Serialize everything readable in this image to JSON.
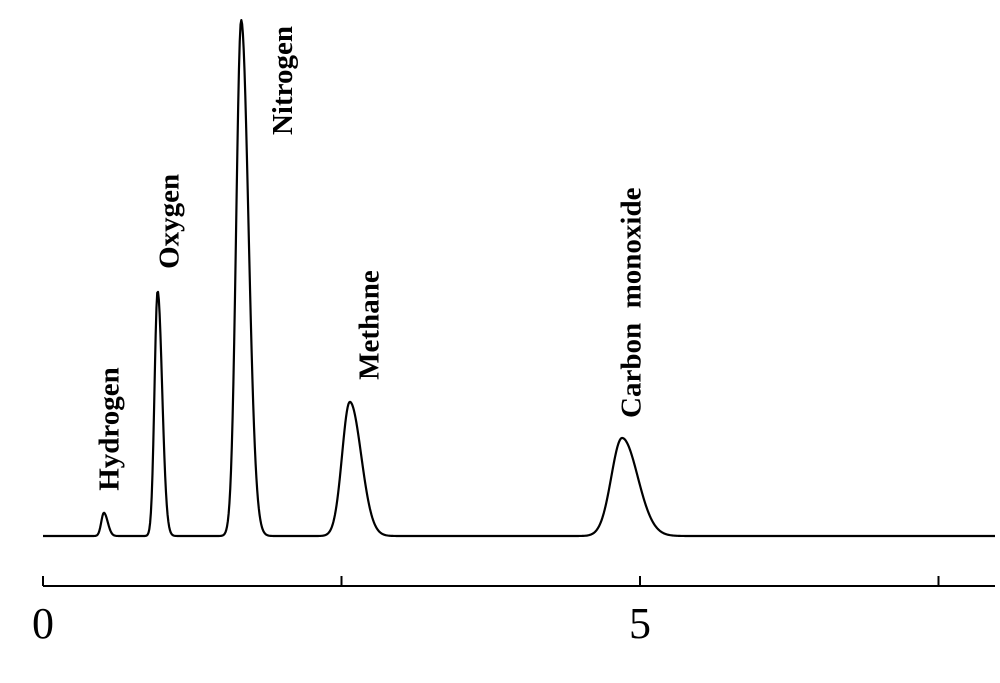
{
  "chart_data": {
    "type": "line",
    "title": "",
    "xlabel": "",
    "ylabel": "",
    "xlim": [
      0,
      8
    ],
    "ylim": [
      0,
      100
    ],
    "grid": false,
    "legend": "none",
    "line_color": "#000000",
    "baseline": 0,
    "peaks": [
      {
        "name": "Hydrogen",
        "x": 0.51,
        "height": 4.5,
        "width": 0.022
      },
      {
        "name": "Oxygen",
        "x": 0.96,
        "height": 47.5,
        "width": 0.026
      },
      {
        "name": "Nitrogen",
        "x": 1.66,
        "height": 100,
        "width": 0.042
      },
      {
        "name": "Methane",
        "x": 2.57,
        "height": 26,
        "width": 0.065
      },
      {
        "name": "Carbon  monoxide",
        "x": 4.85,
        "height": 19,
        "width": 0.09
      }
    ],
    "x_ticks": [
      {
        "value": 0,
        "label": "0"
      },
      {
        "value": 2.5,
        "label": ""
      },
      {
        "value": 5,
        "label": "5"
      },
      {
        "value": 7.5,
        "label": ""
      }
    ]
  }
}
